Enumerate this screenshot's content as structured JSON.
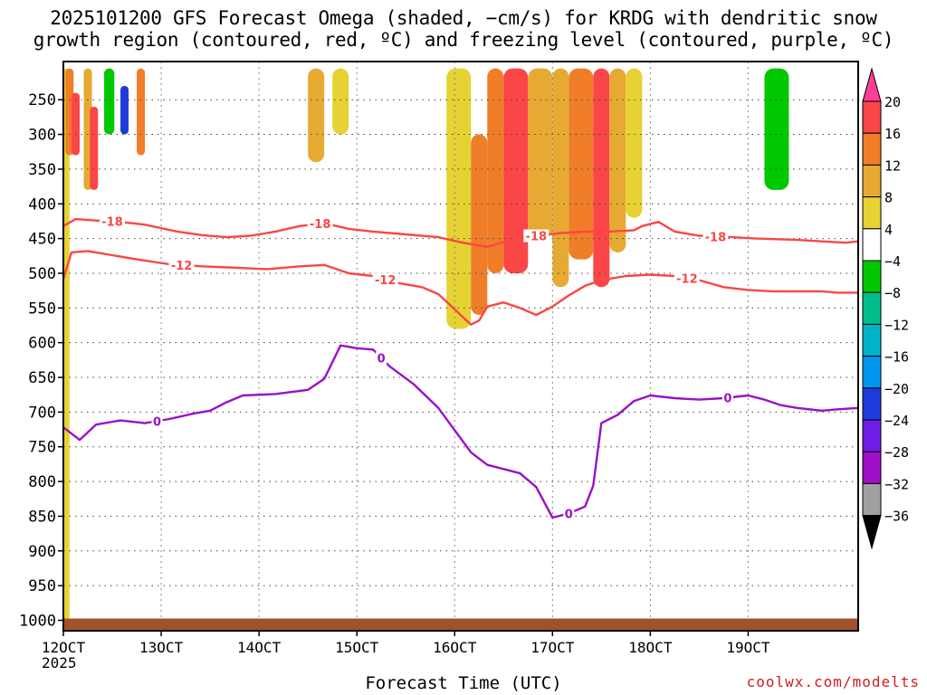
{
  "title_line1": "2025101200 GFS Forecast Omega (shaded, −cm/s) for KRDG with dendritic snow",
  "title_line2": "growth region (contoured, red, ºC) and freezing level (contoured, purple, ºC)",
  "credit": "coolwx.com/modelts",
  "chart_data": {
    "type": "heatmap",
    "title": "2025101200 GFS Forecast Omega (shaded, −cm/s) for KRDG with dendritic snow growth region (contoured, red, ºC) and freezing level (contoured, purple, ºC)",
    "xlabel": "Forecast Time (UTC)",
    "ylabel": "",
    "x_unit": "hours from 12OCT 00Z",
    "xlim": [
      0,
      195
    ],
    "y_unit": "hPa",
    "ylim": [
      1015,
      195
    ],
    "x_ticks": [
      {
        "value": 0,
        "label": "12OCT"
      },
      {
        "value": 24,
        "label": "13OCT"
      },
      {
        "value": 48,
        "label": "14OCT"
      },
      {
        "value": 72,
        "label": "15OCT"
      },
      {
        "value": 96,
        "label": "16OCT"
      },
      {
        "value": 120,
        "label": "17OCT"
      },
      {
        "value": 144,
        "label": "18OCT"
      },
      {
        "value": 168,
        "label": "19OCT"
      }
    ],
    "year_label": "2025",
    "y_ticks": [
      250,
      300,
      350,
      400,
      450,
      500,
      550,
      600,
      650,
      700,
      750,
      800,
      850,
      900,
      950,
      1000
    ],
    "colorbar": {
      "levels": [
        20,
        16,
        12,
        8,
        4,
        -4,
        -8,
        -12,
        -16,
        -20,
        -24,
        -28,
        -32,
        -36
      ],
      "colors": [
        "#ff3c96",
        "#fa4646",
        "#f07d28",
        "#e6aa32",
        "#e6d232",
        "#ffffff",
        "#00c800",
        "#00be8c",
        "#00b4c8",
        "#0096f0",
        "#1e3cdc",
        "#6e1ee6",
        "#a00fc8",
        "#a0a0a0",
        "#000000"
      ]
    },
    "contours": [
      {
        "name": "-18 ºC (dendritic growth top)",
        "color": "#fa4646",
        "label": "-18",
        "points": [
          [
            0,
            432
          ],
          [
            3,
            422
          ],
          [
            8,
            424
          ],
          [
            14,
            426
          ],
          [
            20,
            430
          ],
          [
            28,
            440
          ],
          [
            34,
            445
          ],
          [
            40,
            448
          ],
          [
            46,
            446
          ],
          [
            52,
            440
          ],
          [
            58,
            432
          ],
          [
            64,
            428
          ],
          [
            70,
            436
          ],
          [
            76,
            440
          ],
          [
            84,
            444
          ],
          [
            92,
            448
          ],
          [
            98,
            456
          ],
          [
            104,
            462
          ],
          [
            110,
            452
          ],
          [
            116,
            446
          ],
          [
            122,
            442
          ],
          [
            128,
            440
          ],
          [
            134,
            440
          ],
          [
            140,
            438
          ],
          [
            142,
            432
          ],
          [
            146,
            426
          ],
          [
            150,
            440
          ],
          [
            156,
            446
          ],
          [
            164,
            448
          ],
          [
            170,
            450
          ],
          [
            176,
            451
          ],
          [
            180,
            452
          ],
          [
            186,
            454
          ],
          [
            192,
            456
          ],
          [
            195,
            454
          ]
        ],
        "label_x": [
          12,
          63,
          116,
          160
        ]
      },
      {
        "name": "-12 ºC (dendritic growth bottom)",
        "color": "#fa4646",
        "label": "-12",
        "points": [
          [
            0,
            508
          ],
          [
            2,
            470
          ],
          [
            6,
            468
          ],
          [
            12,
            474
          ],
          [
            18,
            480
          ],
          [
            26,
            487
          ],
          [
            34,
            490
          ],
          [
            42,
            492
          ],
          [
            50,
            494
          ],
          [
            58,
            490
          ],
          [
            64,
            488
          ],
          [
            70,
            500
          ],
          [
            76,
            504
          ],
          [
            82,
            514
          ],
          [
            88,
            520
          ],
          [
            92,
            530
          ],
          [
            96,
            552
          ],
          [
            100,
            574
          ],
          [
            102,
            568
          ],
          [
            104,
            548
          ],
          [
            108,
            542
          ],
          [
            112,
            550
          ],
          [
            116,
            560
          ],
          [
            120,
            548
          ],
          [
            124,
            532
          ],
          [
            128,
            518
          ],
          [
            132,
            510
          ],
          [
            138,
            504
          ],
          [
            144,
            502
          ],
          [
            150,
            504
          ],
          [
            156,
            510
          ],
          [
            162,
            520
          ],
          [
            168,
            524
          ],
          [
            174,
            526
          ],
          [
            180,
            526
          ],
          [
            186,
            526
          ],
          [
            190,
            528
          ],
          [
            195,
            528
          ]
        ],
        "label_x": [
          29,
          79,
          153
        ]
      },
      {
        "name": "0 ºC freezing level",
        "color": "#9a10c8",
        "label": "0",
        "points": [
          [
            0,
            722
          ],
          [
            4,
            740
          ],
          [
            8,
            718
          ],
          [
            14,
            712
          ],
          [
            20,
            716
          ],
          [
            26,
            710
          ],
          [
            32,
            702
          ],
          [
            36,
            698
          ],
          [
            40,
            686
          ],
          [
            44,
            676
          ],
          [
            52,
            674
          ],
          [
            60,
            668
          ],
          [
            64,
            652
          ],
          [
            68,
            604
          ],
          [
            72,
            608
          ],
          [
            76,
            610
          ],
          [
            80,
            634
          ],
          [
            86,
            660
          ],
          [
            92,
            694
          ],
          [
            96,
            726
          ],
          [
            100,
            758
          ],
          [
            104,
            776
          ],
          [
            108,
            782
          ],
          [
            112,
            788
          ],
          [
            116,
            808
          ],
          [
            120,
            852
          ],
          [
            124,
            846
          ],
          [
            128,
            836
          ],
          [
            130,
            806
          ],
          [
            132,
            716
          ],
          [
            136,
            704
          ],
          [
            140,
            684
          ],
          [
            144,
            676
          ],
          [
            150,
            680
          ],
          [
            156,
            682
          ],
          [
            162,
            680
          ],
          [
            168,
            676
          ],
          [
            172,
            682
          ],
          [
            176,
            690
          ],
          [
            180,
            694
          ],
          [
            186,
            698
          ],
          [
            190,
            696
          ],
          [
            195,
            694
          ]
        ],
        "label_x": [
          23,
          78,
          124,
          163
        ]
      }
    ],
    "shaded_cells": [
      {
        "x": [
          0,
          1.5
        ],
        "p": [
          205,
          1000
        ],
        "omega": 5
      },
      {
        "x": [
          0.5,
          2.5
        ],
        "p": [
          205,
          330
        ],
        "omega": 14
      },
      {
        "x": [
          2,
          4
        ],
        "p": [
          240,
          330
        ],
        "omega": 19
      },
      {
        "x": [
          5,
          7
        ],
        "p": [
          205,
          380
        ],
        "omega": 9
      },
      {
        "x": [
          6.5,
          8.5
        ],
        "p": [
          260,
          380
        ],
        "omega": 16
      },
      {
        "x": [
          10,
          12.5
        ],
        "p": [
          205,
          300
        ],
        "omega": -6
      },
      {
        "x": [
          14,
          16
        ],
        "p": [
          230,
          300
        ],
        "omega": -22
      },
      {
        "x": [
          18,
          20
        ],
        "p": [
          205,
          330
        ],
        "omega": 14
      },
      {
        "x": [
          60,
          64
        ],
        "p": [
          205,
          340
        ],
        "omega": 9
      },
      {
        "x": [
          66,
          70
        ],
        "p": [
          205,
          300
        ],
        "omega": 6
      },
      {
        "x": [
          94,
          100
        ],
        "p": [
          205,
          580
        ],
        "omega": 6
      },
      {
        "x": [
          100,
          104
        ],
        "p": [
          300,
          560
        ],
        "omega": 13
      },
      {
        "x": [
          104,
          108
        ],
        "p": [
          205,
          500
        ],
        "omega": 14
      },
      {
        "x": [
          108,
          114
        ],
        "p": [
          205,
          500
        ],
        "omega": 17
      },
      {
        "x": [
          114,
          120
        ],
        "p": [
          205,
          450
        ],
        "omega": 11
      },
      {
        "x": [
          120,
          124
        ],
        "p": [
          205,
          520
        ],
        "omega": 9
      },
      {
        "x": [
          124,
          130
        ],
        "p": [
          205,
          480
        ],
        "omega": 14
      },
      {
        "x": [
          130,
          134
        ],
        "p": [
          205,
          520
        ],
        "omega": 17
      },
      {
        "x": [
          134,
          138
        ],
        "p": [
          205,
          470
        ],
        "omega": 11
      },
      {
        "x": [
          138,
          142
        ],
        "p": [
          205,
          420
        ],
        "omega": 6
      },
      {
        "x": [
          172,
          178
        ],
        "p": [
          205,
          380
        ],
        "omega": -6
      }
    ]
  }
}
